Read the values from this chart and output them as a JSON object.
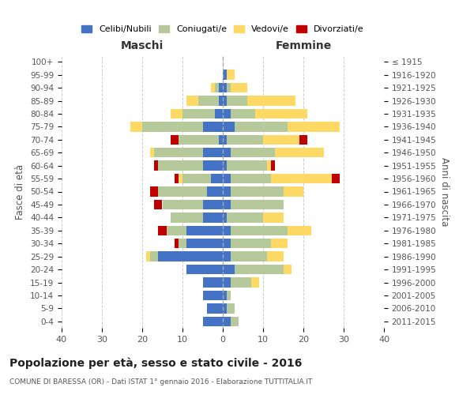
{
  "age_groups": [
    "100+",
    "95-99",
    "90-94",
    "85-89",
    "80-84",
    "75-79",
    "70-74",
    "65-69",
    "60-64",
    "55-59",
    "50-54",
    "45-49",
    "40-44",
    "35-39",
    "30-34",
    "25-29",
    "20-24",
    "15-19",
    "10-14",
    "5-9",
    "0-4"
  ],
  "birth_years": [
    "≤ 1915",
    "1916-1920",
    "1921-1925",
    "1926-1930",
    "1931-1935",
    "1936-1940",
    "1941-1945",
    "1946-1950",
    "1951-1955",
    "1956-1960",
    "1961-1965",
    "1966-1970",
    "1971-1975",
    "1976-1980",
    "1981-1985",
    "1986-1990",
    "1991-1995",
    "1996-2000",
    "2001-2005",
    "2006-2010",
    "2011-2015"
  ],
  "males": {
    "celibinubili": [
      0,
      0,
      1,
      1,
      2,
      5,
      1,
      5,
      5,
      3,
      4,
      5,
      5,
      9,
      9,
      16,
      9,
      5,
      5,
      4,
      5
    ],
    "coniugati": [
      0,
      0,
      1,
      5,
      8,
      15,
      10,
      12,
      11,
      7,
      12,
      10,
      8,
      5,
      2,
      2,
      0,
      0,
      0,
      0,
      0
    ],
    "vedovi": [
      0,
      0,
      1,
      3,
      3,
      3,
      0,
      1,
      0,
      1,
      0,
      0,
      0,
      0,
      0,
      1,
      0,
      0,
      0,
      0,
      0
    ],
    "divorziati": [
      0,
      0,
      0,
      0,
      0,
      0,
      2,
      0,
      1,
      1,
      2,
      2,
      0,
      2,
      1,
      0,
      0,
      0,
      0,
      0,
      0
    ]
  },
  "females": {
    "celibenubili": [
      0,
      1,
      1,
      1,
      2,
      3,
      1,
      2,
      1,
      2,
      2,
      2,
      1,
      2,
      2,
      2,
      3,
      2,
      1,
      1,
      2
    ],
    "coniugate": [
      0,
      0,
      1,
      5,
      6,
      13,
      9,
      11,
      10,
      10,
      13,
      13,
      9,
      14,
      10,
      9,
      12,
      5,
      1,
      2,
      2
    ],
    "vedove": [
      0,
      2,
      4,
      12,
      13,
      13,
      9,
      12,
      1,
      15,
      5,
      0,
      5,
      6,
      4,
      4,
      2,
      2,
      0,
      0,
      0
    ],
    "divorziate": [
      0,
      0,
      0,
      0,
      0,
      0,
      2,
      0,
      1,
      2,
      0,
      0,
      0,
      0,
      0,
      0,
      0,
      0,
      0,
      0,
      0
    ]
  },
  "colors": {
    "celibinubili": "#4472c4",
    "coniugati": "#b5c99a",
    "vedovi": "#ffd966",
    "divorziati": "#c00000"
  },
  "title": "Popolazione per età, sesso e stato civile - 2016",
  "subtitle": "COMUNE DI BARESSA (OR) - Dati ISTAT 1° gennaio 2016 - Elaborazione TUTTITALIA.IT",
  "xlabel_left": "Maschi",
  "xlabel_right": "Femmine",
  "ylabel_left": "Fasce di età",
  "ylabel_right": "Anni di nascita",
  "xlim": 40,
  "background_color": "#ffffff",
  "legend_labels": [
    "Celibi/Nubili",
    "Coniugati/e",
    "Vedovi/e",
    "Divorziati/e"
  ]
}
